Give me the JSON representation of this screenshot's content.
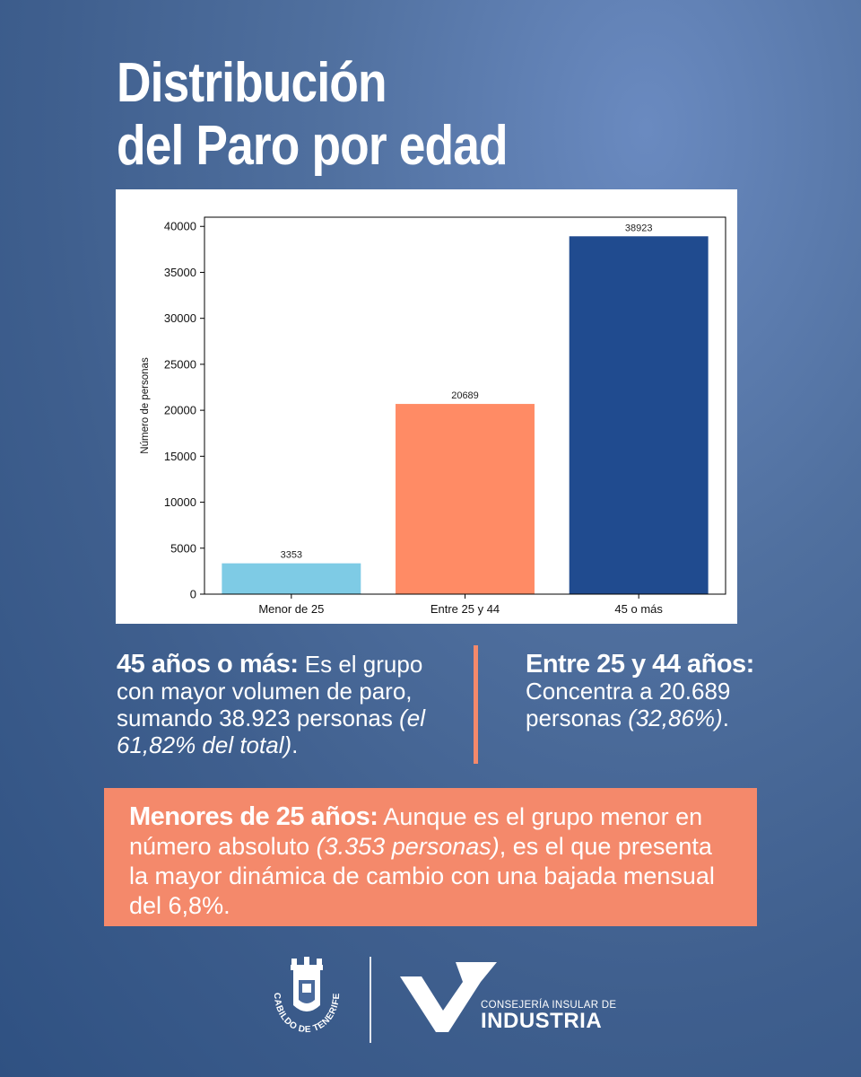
{
  "header": {
    "title_line1": "Distribución",
    "title_line2": "del Paro por edad"
  },
  "chart_data": {
    "type": "bar",
    "categories": [
      "Menor de 25",
      "Entre 25 y 44",
      "45 o más"
    ],
    "values": [
      3353,
      20689,
      38923
    ],
    "data_labels": [
      "3353",
      "20689",
      "38923"
    ],
    "colors": [
      "#7ecbe5",
      "#ff8b65",
      "#204b8f"
    ],
    "title": "",
    "xlabel": "",
    "ylabel": "Número de personas",
    "ylim": [
      0,
      41000
    ],
    "yticks": [
      0,
      5000,
      10000,
      15000,
      20000,
      25000,
      30000,
      35000,
      40000
    ],
    "ytick_labels": [
      "0",
      "5000",
      "10000",
      "15000",
      "20000",
      "25000",
      "30000",
      "35000",
      "40000"
    ],
    "grid": false,
    "legend": "none"
  },
  "stats": {
    "left": {
      "heading": "45 años o más:",
      "text": " Es el grupo con mayor volumen de paro, sumando 38.923 personas ",
      "italic": "(el 61,82% del total)",
      "tail": "."
    },
    "right": {
      "heading": "Entre 25 y 44 años:",
      "text": " Concentra a 20.689 personas ",
      "italic": "(32,86%)",
      "tail": "."
    }
  },
  "banner": {
    "heading": "Menores de 25 años:",
    "text1": " Aunque es el grupo menor en número absoluto ",
    "italic": "(3.353 personas)",
    "text2": ", es el que presenta la mayor dinámica de cambio con una bajada mensual del 6,8%."
  },
  "footer": {
    "cabildo_text": "CABILDO DE TENERIFE",
    "brand_small": "CONSEJERÍA INSULAR DE",
    "brand_big": "INDUSTRIA"
  },
  "colors": {
    "accent": "#f4896b",
    "background": "#4a6a9c"
  }
}
